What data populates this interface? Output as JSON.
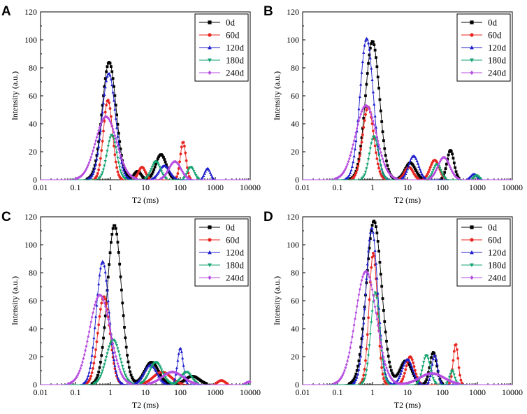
{
  "chart_data": [
    {
      "panel": "A",
      "type": "line",
      "xscale": "log",
      "xlim": [
        0.01,
        10000
      ],
      "ylim": [
        0,
        120
      ],
      "xlabel": "T2 (ms)",
      "ylabel": "Intensity (a.u.)",
      "x_ticks": [
        "0.01",
        "0.1",
        "1",
        "10",
        "100",
        "1000",
        "10000"
      ],
      "y_ticks": [
        "0",
        "20",
        "40",
        "60",
        "80",
        "100",
        "120"
      ],
      "legend_position": "top-right",
      "series": [
        {
          "name": "0d",
          "color": "#000000",
          "marker": "square",
          "peaks": [
            {
              "x": 0.92,
              "height": 84,
              "width": 0.2
            },
            {
              "x": 28,
              "height": 18,
              "width": 0.15
            },
            {
              "x": 6,
              "height": 6,
              "width": 0.1
            }
          ]
        },
        {
          "name": "60d",
          "color": "#e8251f",
          "marker": "circle",
          "peaks": [
            {
              "x": 0.85,
              "height": 57,
              "width": 0.13
            },
            {
              "x": 120,
              "height": 27,
              "width": 0.08
            },
            {
              "x": 8,
              "height": 9,
              "width": 0.1
            }
          ]
        },
        {
          "name": "120d",
          "color": "#1e1ecd",
          "marker": "triangle-up",
          "peaks": [
            {
              "x": 0.9,
              "height": 76,
              "width": 0.19
            },
            {
              "x": 35,
              "height": 10,
              "width": 0.15
            },
            {
              "x": 600,
              "height": 8,
              "width": 0.08
            }
          ]
        },
        {
          "name": "180d",
          "color": "#13a36e",
          "marker": "triangle-down",
          "peaks": [
            {
              "x": 1.1,
              "height": 32,
              "width": 0.14
            },
            {
              "x": 20,
              "height": 13,
              "width": 0.13
            },
            {
              "x": 200,
              "height": 9,
              "width": 0.1
            }
          ]
        },
        {
          "name": "240d",
          "color": "#b64de0",
          "marker": "diamond",
          "peaks": [
            {
              "x": 0.75,
              "height": 45,
              "width": 0.3
            },
            {
              "x": 70,
              "height": 13,
              "width": 0.17
            }
          ]
        }
      ]
    },
    {
      "panel": "B",
      "type": "line",
      "xscale": "log",
      "xlim": [
        0.01,
        10000
      ],
      "ylim": [
        0,
        120
      ],
      "xlabel": "T2 (ms)",
      "ylabel": "Intensity (a.u.)",
      "x_ticks": [
        "0.01",
        "0.1",
        "1",
        "10",
        "100",
        "1000",
        "10000"
      ],
      "y_ticks": [
        "0",
        "20",
        "40",
        "60",
        "80",
        "100",
        "120"
      ],
      "legend_position": "top-right",
      "series": [
        {
          "name": "0d",
          "color": "#000000",
          "marker": "square",
          "peaks": [
            {
              "x": 1.0,
              "height": 99,
              "width": 0.2
            },
            {
              "x": 170,
              "height": 21,
              "width": 0.1
            },
            {
              "x": 12,
              "height": 12,
              "width": 0.15
            }
          ]
        },
        {
          "name": "60d",
          "color": "#e8251f",
          "marker": "circle",
          "peaks": [
            {
              "x": 0.75,
              "height": 52,
              "width": 0.16
            },
            {
              "x": 60,
              "height": 14,
              "width": 0.13
            },
            {
              "x": 11,
              "height": 9,
              "width": 0.12
            }
          ]
        },
        {
          "name": "120d",
          "color": "#1e1ecd",
          "marker": "triangle-up",
          "peaks": [
            {
              "x": 0.68,
              "height": 101,
              "width": 0.19
            },
            {
              "x": 15,
              "height": 17,
              "width": 0.14
            },
            {
              "x": 800,
              "height": 4,
              "width": 0.09
            }
          ]
        },
        {
          "name": "180d",
          "color": "#13a36e",
          "marker": "triangle-down",
          "peaks": [
            {
              "x": 1.1,
              "height": 31,
              "width": 0.13
            },
            {
              "x": 70,
              "height": 11,
              "width": 0.11
            },
            {
              "x": 950,
              "height": 3,
              "width": 0.07
            }
          ]
        },
        {
          "name": "240d",
          "color": "#b64de0",
          "marker": "diamond",
          "peaks": [
            {
              "x": 0.65,
              "height": 53,
              "width": 0.3
            },
            {
              "x": 110,
              "height": 16,
              "width": 0.17
            }
          ]
        }
      ]
    },
    {
      "panel": "C",
      "type": "line",
      "xscale": "log",
      "xlim": [
        0.01,
        10000
      ],
      "ylim": [
        0,
        120
      ],
      "xlabel": "T2 (ms)",
      "ylabel": "Intensity (a.u.)",
      "x_ticks": [
        "0.01",
        "0.1",
        "1",
        "10",
        "100",
        "1000",
        "10000"
      ],
      "y_ticks": [
        "0",
        "20",
        "40",
        "60",
        "80",
        "100",
        "120"
      ],
      "legend_position": "top-right",
      "series": [
        {
          "name": "0d",
          "color": "#000000",
          "marker": "square",
          "peaks": [
            {
              "x": 1.3,
              "height": 114,
              "width": 0.2
            },
            {
              "x": 15,
              "height": 16,
              "width": 0.2
            },
            {
              "x": 220,
              "height": 6,
              "width": 0.2
            }
          ]
        },
        {
          "name": "60d",
          "color": "#e8251f",
          "marker": "circle",
          "peaks": [
            {
              "x": 0.65,
              "height": 63,
              "width": 0.17
            },
            {
              "x": 30,
              "height": 9,
              "width": 0.25
            },
            {
              "x": 1500,
              "height": 3,
              "width": 0.1
            }
          ]
        },
        {
          "name": "120d",
          "color": "#1e1ecd",
          "marker": "triangle-up",
          "peaks": [
            {
              "x": 0.6,
              "height": 88,
              "width": 0.18
            },
            {
              "x": 14,
              "height": 14,
              "width": 0.18
            },
            {
              "x": 100,
              "height": 26,
              "width": 0.08
            }
          ]
        },
        {
          "name": "180d",
          "color": "#13a36e",
          "marker": "triangle-down",
          "peaks": [
            {
              "x": 1.2,
              "height": 32,
              "width": 0.2
            },
            {
              "x": 20,
              "height": 16,
              "width": 0.18
            },
            {
              "x": 150,
              "height": 9,
              "width": 0.15
            }
          ]
        },
        {
          "name": "240d",
          "color": "#b64de0",
          "marker": "diamond",
          "peaks": [
            {
              "x": 0.5,
              "height": 64,
              "width": 0.3
            },
            {
              "x": 60,
              "height": 9,
              "width": 0.3
            },
            {
              "x": 9500,
              "height": 2,
              "width": 0.1
            }
          ]
        }
      ]
    },
    {
      "panel": "D",
      "type": "line",
      "xscale": "log",
      "xlim": [
        0.01,
        10000
      ],
      "ylim": [
        0,
        120
      ],
      "xlabel": "T2 (ms)",
      "ylabel": "Intensity (a.u.)",
      "x_ticks": [
        "0.01",
        "0.1",
        "1",
        "10",
        "100",
        "1000",
        "10000"
      ],
      "y_ticks": [
        "0",
        "20",
        "40",
        "60",
        "80",
        "100",
        "120"
      ],
      "legend_position": "top-right",
      "series": [
        {
          "name": "0d",
          "color": "#000000",
          "marker": "square",
          "peaks": [
            {
              "x": 1.1,
              "height": 117,
              "width": 0.22
            },
            {
              "x": 9,
              "height": 17,
              "width": 0.17
            },
            {
              "x": 55,
              "height": 23,
              "width": 0.1
            }
          ]
        },
        {
          "name": "60d",
          "color": "#e8251f",
          "marker": "circle",
          "peaks": [
            {
              "x": 1.05,
              "height": 94,
              "width": 0.12
            },
            {
              "x": 12,
              "height": 20,
              "width": 0.12
            },
            {
              "x": 240,
              "height": 29,
              "width": 0.07
            }
          ]
        },
        {
          "name": "120d",
          "color": "#1e1ecd",
          "marker": "triangle-up",
          "peaks": [
            {
              "x": 0.95,
              "height": 112,
              "width": 0.17
            },
            {
              "x": 10,
              "height": 18,
              "width": 0.15
            },
            {
              "x": 60,
              "height": 21,
              "width": 0.08
            }
          ]
        },
        {
          "name": "180d",
          "color": "#13a36e",
          "marker": "triangle-down",
          "peaks": [
            {
              "x": 1.2,
              "height": 66,
              "width": 0.13
            },
            {
              "x": 35,
              "height": 21,
              "width": 0.11
            },
            {
              "x": 190,
              "height": 10,
              "width": 0.07
            }
          ]
        },
        {
          "name": "240d",
          "color": "#b64de0",
          "marker": "diamond",
          "peaks": [
            {
              "x": 0.65,
              "height": 81,
              "width": 0.3
            },
            {
              "x": 50,
              "height": 8,
              "width": 0.35
            }
          ]
        }
      ]
    }
  ]
}
